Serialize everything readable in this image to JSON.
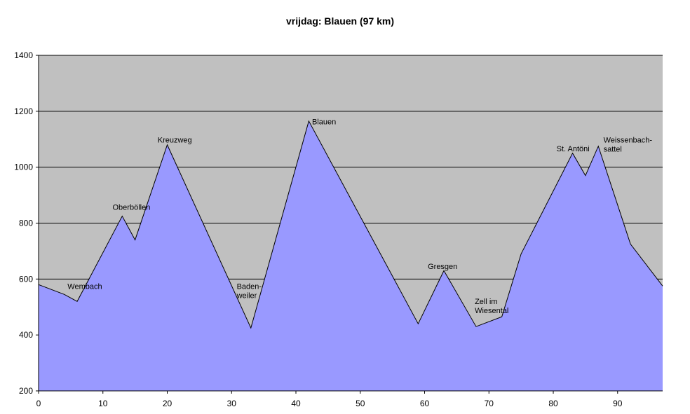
{
  "chart_data": {
    "type": "area",
    "title": "vrijdag: Blauen (97 km)",
    "xlabel": "",
    "ylabel": "",
    "xlim": [
      0,
      97
    ],
    "ylim": [
      200,
      1400
    ],
    "xticks": [
      0,
      10,
      20,
      30,
      40,
      50,
      60,
      70,
      80,
      90
    ],
    "yticks": [
      200,
      400,
      600,
      800,
      1000,
      1200,
      1400
    ],
    "grid": "horizontal",
    "legend": "none",
    "colors": {
      "plot_background": "#c0c0c0",
      "fill": "#9999ff",
      "line": "#000000"
    },
    "series": [
      {
        "x": [
          0,
          4,
          6,
          13,
          15,
          20,
          33,
          42,
          59,
          63,
          68,
          72,
          75,
          83,
          85,
          87,
          92,
          97
        ],
        "y": [
          580,
          545,
          520,
          825,
          740,
          1080,
          425,
          1165,
          440,
          630,
          430,
          465,
          690,
          1050,
          970,
          1075,
          725,
          575
        ]
      }
    ],
    "annotations": [
      {
        "lines": [
          "Wembach"
        ],
        "x": 4.5,
        "y": 565
      },
      {
        "lines": [
          "Oberböllen"
        ],
        "x": 11.5,
        "y": 848
      },
      {
        "lines": [
          "Kreuzweg"
        ],
        "x": 18.5,
        "y": 1088
      },
      {
        "lines": [
          "Baden-",
          "weiler"
        ],
        "x": 30.8,
        "y": 565
      },
      {
        "lines": [
          "Blauen"
        ],
        "x": 42.5,
        "y": 1153
      },
      {
        "lines": [
          "Gresgen"
        ],
        "x": 60.5,
        "y": 636
      },
      {
        "lines": [
          "Zell im",
          "Wiesental"
        ],
        "x": 67.8,
        "y": 511
      },
      {
        "lines": [
          "St. Antöni"
        ],
        "x": 80.5,
        "y": 1057
      },
      {
        "lines": [
          "Weissenbach-",
          "sattel"
        ],
        "x": 87.8,
        "y": 1088
      }
    ]
  }
}
